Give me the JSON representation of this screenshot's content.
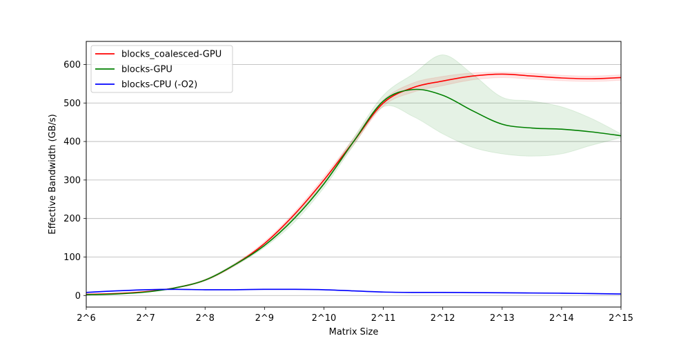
{
  "chart_data": {
    "type": "line",
    "title": "",
    "xlabel": "Matrix Size",
    "ylabel": "Effective Bandwidth (GB/s)",
    "x_ticks": [
      6,
      7,
      8,
      9,
      10,
      11,
      12,
      13,
      14,
      15
    ],
    "x_tick_labels": [
      "2^6",
      "2^7",
      "2^8",
      "2^9",
      "2^10",
      "2^11",
      "2^12",
      "2^13",
      "2^14",
      "2^15"
    ],
    "xlim": [
      6,
      15
    ],
    "y_ticks": [
      0,
      100,
      200,
      300,
      400,
      500,
      600
    ],
    "y_tick_labels": [
      "0",
      "100",
      "200",
      "300",
      "400",
      "500",
      "600"
    ],
    "ylim": [
      -30,
      660
    ],
    "grid": "y-major",
    "legend_position": "top-left",
    "series": [
      {
        "name": "blocks_coalesced-GPU",
        "color": "#ff0000",
        "band_color": "#ff0000",
        "x": [
          6,
          6.5,
          7,
          7.5,
          8,
          8.5,
          9,
          9.5,
          10,
          10.5,
          11,
          11.5,
          12,
          12.5,
          13,
          13.5,
          14,
          14.5,
          15
        ],
        "values": [
          3,
          5,
          10,
          20,
          40,
          80,
          135,
          210,
          300,
          400,
          500,
          540,
          557,
          570,
          575,
          570,
          565,
          563,
          566
        ],
        "lower": [
          2,
          4,
          9,
          19,
          38,
          77,
          130,
          204,
          292,
          392,
          492,
          528,
          545,
          560,
          566,
          562,
          558,
          556,
          559
        ],
        "upper": [
          4,
          6,
          11,
          21,
          42,
          83,
          140,
          216,
          308,
          408,
          508,
          552,
          569,
          578,
          580,
          577,
          572,
          570,
          573
        ]
      },
      {
        "name": "blocks-GPU",
        "color": "#008000",
        "band_color": "#008000",
        "x": [
          6,
          6.5,
          7,
          7.5,
          8,
          8.5,
          9,
          9.5,
          10,
          10.5,
          11,
          11.5,
          12,
          12.5,
          13,
          13.5,
          14,
          14.5,
          15
        ],
        "values": [
          2,
          4,
          9,
          20,
          40,
          80,
          130,
          200,
          290,
          400,
          505,
          535,
          520,
          480,
          445,
          435,
          432,
          425,
          415
        ],
        "lower": [
          1,
          3,
          8,
          19,
          38,
          77,
          125,
          190,
          280,
          390,
          490,
          465,
          420,
          385,
          368,
          362,
          368,
          390,
          410
        ],
        "upper": [
          3,
          5,
          10,
          21,
          42,
          83,
          135,
          210,
          300,
          410,
          520,
          575,
          625,
          575,
          515,
          505,
          490,
          460,
          420
        ]
      },
      {
        "name": "blocks-CPU (-O2)",
        "color": "#0000ff",
        "band_color": "#0000ff",
        "x": [
          6,
          6.5,
          7,
          7.5,
          8,
          8.5,
          9,
          9.5,
          10,
          10.5,
          11,
          11.5,
          12,
          12.5,
          13,
          13.5,
          14,
          14.5,
          15
        ],
        "values": [
          8,
          12,
          15,
          16,
          15,
          15,
          16,
          16,
          15,
          12,
          9,
          8,
          8,
          7.5,
          7,
          6.5,
          6,
          5,
          4
        ],
        "lower": [
          7,
          11,
          14,
          15,
          14,
          14,
          15,
          15,
          14,
          11,
          8,
          7,
          7,
          6.5,
          6,
          5.5,
          5,
          4,
          3
        ],
        "upper": [
          9,
          13,
          16,
          17,
          16,
          16,
          17,
          17,
          16,
          13,
          10,
          9,
          9,
          8.5,
          8,
          7.5,
          7,
          6,
          5
        ]
      }
    ]
  }
}
